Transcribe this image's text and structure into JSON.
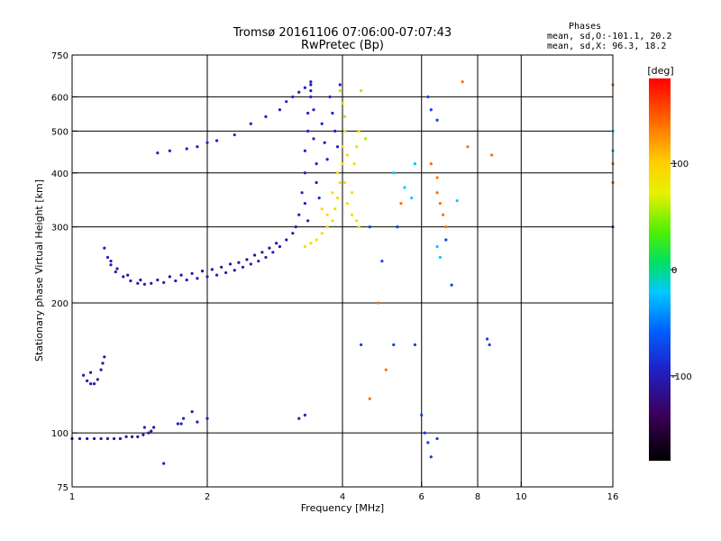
{
  "chart_data": {
    "type": "scatter",
    "title": "Tromsø 20161106 07:06:00-07:07:43",
    "subtitle": "RwPretec (Bp)",
    "xlabel": "Frequency [MHz]",
    "ylabel": "Stationary phase Virtual Height [km]",
    "xscale": "log",
    "yscale": "log",
    "xlim": [
      1,
      16
    ],
    "ylim": [
      75,
      750
    ],
    "xticks": [
      1,
      2,
      4,
      6,
      8,
      10,
      16
    ],
    "xtick_labels": [
      "1",
      "2",
      "4",
      "6",
      "8",
      "10",
      "16"
    ],
    "yticks": [
      75,
      100,
      200,
      300,
      400,
      500,
      600,
      750
    ],
    "ytick_labels": [
      "75",
      "100",
      "200",
      "300",
      "400",
      "500",
      "600",
      "750"
    ],
    "grid": true,
    "colorbar": {
      "label": "[deg]",
      "min": -180,
      "max": 180,
      "ticks": [
        -100,
        0,
        100
      ],
      "tick_labels": [
        "-100",
        "0",
        "100"
      ]
    },
    "annotations": {
      "heading": "Phases",
      "line1": "mean, sd,O:-101.1, 20.2",
      "line2": "mean, sd,X:  96.3, 18.2"
    },
    "series": [
      {
        "points": [
          [
            1.0,
            97
          ],
          [
            1.04,
            97
          ],
          [
            1.08,
            97
          ],
          [
            1.12,
            97
          ],
          [
            1.16,
            97
          ],
          [
            1.2,
            97
          ],
          [
            1.24,
            97
          ],
          [
            1.28,
            97
          ],
          [
            1.32,
            98
          ],
          [
            1.36,
            98
          ],
          [
            1.4,
            98
          ],
          [
            1.44,
            99
          ],
          [
            1.48,
            100
          ],
          [
            1.5,
            101
          ],
          [
            1.52,
            103
          ]
        ],
        "phase": -115
      },
      {
        "points": [
          [
            1.08,
            132
          ],
          [
            1.1,
            130
          ],
          [
            1.12,
            130
          ],
          [
            1.14,
            133
          ],
          [
            1.16,
            140
          ],
          [
            1.17,
            145
          ],
          [
            1.18,
            150
          ],
          [
            1.1,
            138
          ],
          [
            1.06,
            136
          ]
        ],
        "phase": -115
      },
      {
        "points": [
          [
            1.18,
            268
          ],
          [
            1.2,
            255
          ],
          [
            1.22,
            245
          ],
          [
            1.25,
            236
          ],
          [
            1.3,
            230
          ],
          [
            1.35,
            225
          ],
          [
            1.4,
            222
          ],
          [
            1.45,
            221
          ],
          [
            1.5,
            222
          ],
          [
            1.6,
            223
          ],
          [
            1.7,
            225
          ],
          [
            1.8,
            226
          ],
          [
            1.9,
            228
          ],
          [
            2.0,
            230
          ],
          [
            2.1,
            232
          ],
          [
            2.2,
            235
          ],
          [
            2.3,
            238
          ],
          [
            2.4,
            242
          ],
          [
            2.5,
            246
          ],
          [
            2.6,
            250
          ],
          [
            2.7,
            255
          ],
          [
            2.8,
            262
          ],
          [
            2.9,
            270
          ],
          [
            3.0,
            280
          ],
          [
            3.1,
            290
          ],
          [
            3.15,
            300
          ]
        ],
        "phase": -110
      },
      {
        "points": [
          [
            1.22,
            250
          ],
          [
            1.26,
            240
          ],
          [
            1.33,
            232
          ],
          [
            1.42,
            226
          ],
          [
            1.55,
            226
          ],
          [
            1.65,
            230
          ],
          [
            1.75,
            232
          ],
          [
            1.85,
            234
          ],
          [
            1.95,
            237
          ],
          [
            2.05,
            239
          ],
          [
            2.15,
            242
          ],
          [
            2.25,
            246
          ],
          [
            2.35,
            248
          ],
          [
            2.45,
            252
          ],
          [
            2.55,
            258
          ],
          [
            2.65,
            262
          ],
          [
            2.75,
            268
          ],
          [
            2.85,
            275
          ]
        ],
        "phase": -120
      },
      {
        "points": [
          [
            1.55,
            445
          ],
          [
            1.65,
            450
          ],
          [
            1.8,
            455
          ],
          [
            1.9,
            460
          ],
          [
            2.0,
            470
          ],
          [
            2.1,
            475
          ],
          [
            2.3,
            490
          ],
          [
            2.5,
            520
          ],
          [
            2.7,
            540
          ],
          [
            2.9,
            560
          ],
          [
            3.0,
            585
          ],
          [
            3.1,
            600
          ],
          [
            3.2,
            615
          ],
          [
            3.3,
            630
          ],
          [
            3.4,
            640
          ]
        ],
        "phase": -100
      },
      {
        "points": [
          [
            3.2,
            320
          ],
          [
            3.25,
            360
          ],
          [
            3.3,
            400
          ],
          [
            3.3,
            450
          ],
          [
            3.35,
            500
          ],
          [
            3.35,
            550
          ],
          [
            3.4,
            600
          ],
          [
            3.4,
            650
          ],
          [
            3.45,
            560
          ],
          [
            3.45,
            480
          ],
          [
            3.5,
            420
          ],
          [
            3.5,
            380
          ],
          [
            3.55,
            350
          ],
          [
            3.6,
            520
          ],
          [
            3.65,
            470
          ],
          [
            3.7,
            430
          ],
          [
            3.75,
            600
          ],
          [
            3.8,
            550
          ],
          [
            3.85,
            500
          ],
          [
            3.9,
            460
          ],
          [
            3.95,
            640
          ],
          [
            3.3,
            340
          ],
          [
            3.35,
            310
          ],
          [
            3.4,
            620
          ]
        ],
        "phase": -100
      },
      {
        "points": [
          [
            3.3,
            270
          ],
          [
            3.4,
            275
          ],
          [
            3.5,
            280
          ],
          [
            3.6,
            290
          ],
          [
            3.7,
            300
          ],
          [
            3.8,
            310
          ],
          [
            3.85,
            330
          ],
          [
            3.9,
            350
          ],
          [
            3.95,
            380
          ],
          [
            4.0,
            420
          ],
          [
            4.0,
            460
          ],
          [
            4.05,
            500
          ],
          [
            4.05,
            380
          ],
          [
            4.1,
            340
          ],
          [
            4.2,
            320
          ],
          [
            4.3,
            310
          ],
          [
            4.35,
            300
          ],
          [
            3.9,
            400
          ],
          [
            4.1,
            440
          ],
          [
            4.2,
            360
          ],
          [
            4.25,
            420
          ],
          [
            4.3,
            460
          ],
          [
            4.35,
            500
          ],
          [
            3.7,
            320
          ],
          [
            3.8,
            360
          ],
          [
            3.6,
            330
          ]
        ],
        "phase": 100
      },
      {
        "points": [
          [
            3.95,
            620
          ],
          [
            4.0,
            580
          ],
          [
            4.05,
            540
          ],
          [
            4.4,
            620
          ],
          [
            4.5,
            480
          ]
        ],
        "phase": 60
      },
      {
        "points": [
          [
            4.4,
            160
          ],
          [
            4.6,
            300
          ],
          [
            4.9,
            250
          ],
          [
            5.2,
            160
          ],
          [
            5.3,
            300
          ],
          [
            5.8,
            160
          ],
          [
            6.2,
            600
          ],
          [
            6.3,
            560
          ],
          [
            6.5,
            530
          ],
          [
            6.0,
            110
          ],
          [
            6.1,
            100
          ],
          [
            6.2,
            95
          ],
          [
            6.3,
            88
          ],
          [
            6.5,
            97
          ],
          [
            6.8,
            280
          ],
          [
            7.0,
            220
          ],
          [
            8.4,
            165
          ],
          [
            8.5,
            160
          ],
          [
            16,
            300
          ]
        ],
        "phase": -80
      },
      {
        "points": [
          [
            4.6,
            120
          ],
          [
            4.8,
            200
          ],
          [
            5.0,
            140
          ],
          [
            5.4,
            340
          ],
          [
            6.3,
            420
          ],
          [
            6.5,
            390
          ],
          [
            6.5,
            360
          ],
          [
            6.6,
            340
          ],
          [
            6.7,
            320
          ],
          [
            6.8,
            300
          ],
          [
            7.4,
            650
          ],
          [
            7.6,
            460
          ],
          [
            8.6,
            440
          ],
          [
            16,
            640
          ],
          [
            16,
            420
          ],
          [
            16,
            380
          ]
        ],
        "phase": 140
      },
      {
        "points": [
          [
            5.2,
            400
          ],
          [
            5.5,
            370
          ],
          [
            5.7,
            350
          ],
          [
            5.8,
            420
          ],
          [
            6.5,
            270
          ],
          [
            6.6,
            255
          ],
          [
            7.2,
            345
          ],
          [
            16,
            500
          ],
          [
            16,
            450
          ]
        ],
        "phase": -20
      },
      {
        "points": [
          [
            1.72,
            105
          ],
          [
            1.77,
            108
          ],
          [
            1.85,
            112
          ],
          [
            1.9,
            106
          ],
          [
            2.0,
            108
          ],
          [
            1.45,
            103
          ],
          [
            1.6,
            85
          ],
          [
            1.75,
            105
          ],
          [
            3.2,
            108
          ],
          [
            3.3,
            110
          ]
        ],
        "phase": -105
      }
    ]
  }
}
